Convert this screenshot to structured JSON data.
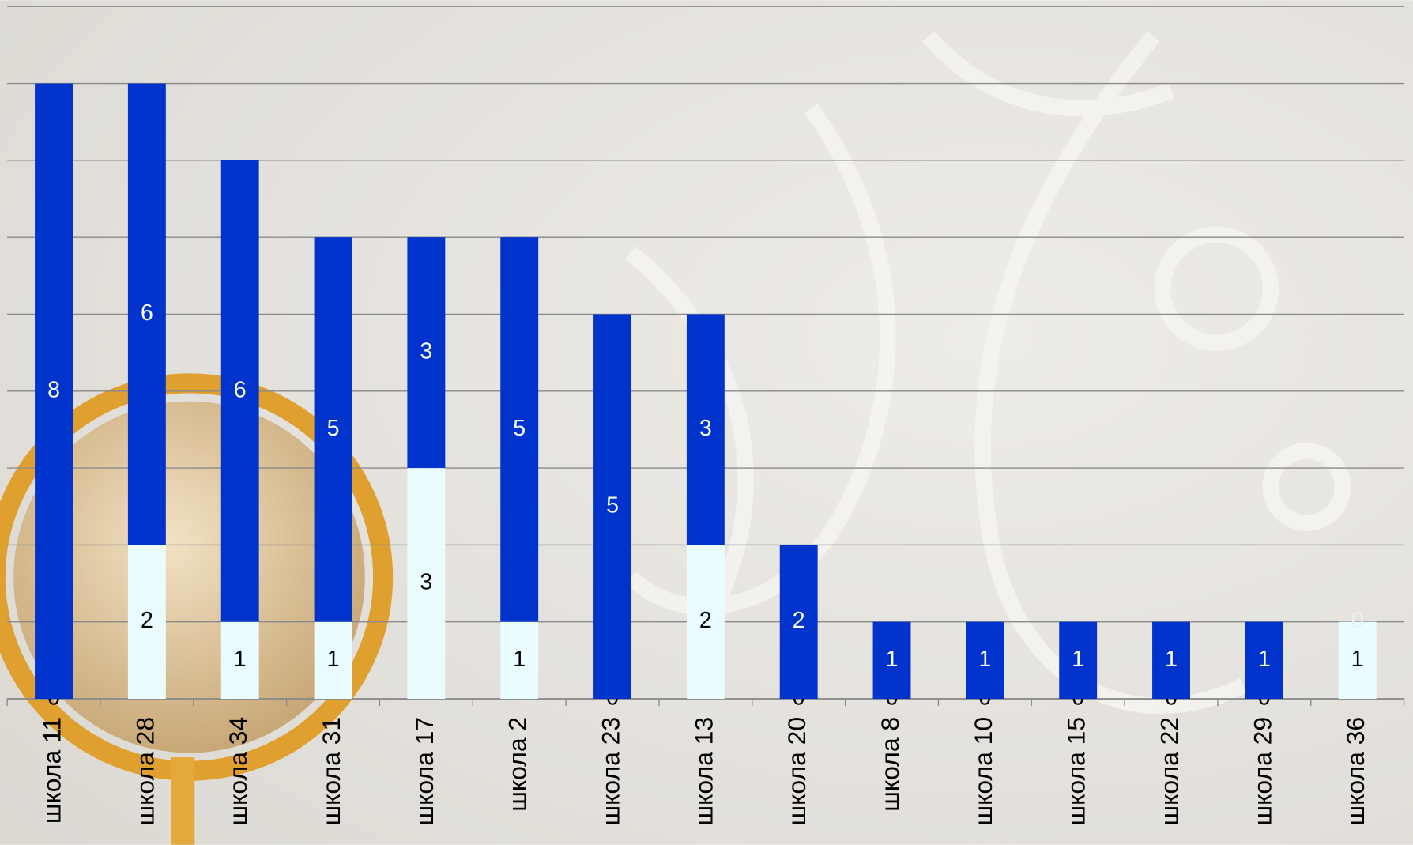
{
  "chart_data": {
    "type": "bar",
    "stacked": true,
    "categories": [
      "школа 11",
      "школа 28",
      "школа 34",
      "школа 31",
      "школа 17",
      "школа 2",
      "школа 23",
      "школа 13",
      "школа 20",
      "школа 8",
      "школа 10",
      "школа 15",
      "школа 22",
      "школа 29",
      "школа 36"
    ],
    "series": [
      {
        "color": "#eafcfd",
        "values": [
          0,
          2,
          1,
          1,
          3,
          1,
          0,
          2,
          0,
          0,
          0,
          0,
          0,
          0,
          1
        ]
      },
      {
        "color": "#0033cc",
        "values": [
          8,
          6,
          6,
          5,
          3,
          5,
          5,
          3,
          2,
          1,
          1,
          1,
          1,
          1,
          0
        ]
      }
    ],
    "ylim": [
      0,
      9
    ],
    "yticks": [
      0,
      1,
      2,
      3,
      4,
      5,
      6,
      7,
      8,
      9
    ],
    "grid": true
  }
}
